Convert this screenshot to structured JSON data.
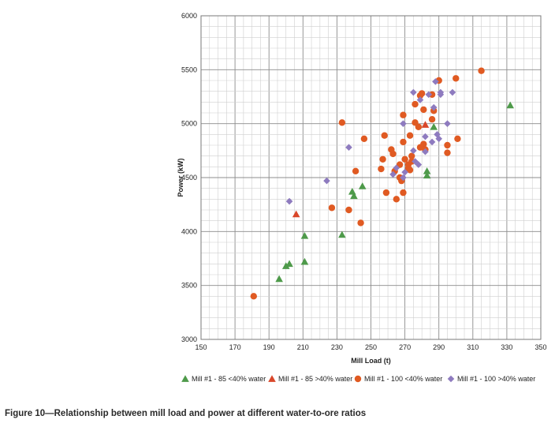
{
  "caption": "Figure 10—Relationship between mill load and power at different water-to-ore ratios",
  "chart_data": {
    "type": "scatter",
    "title": "",
    "xlabel": "Mill Load (t)",
    "ylabel": "Power (kW)",
    "xlim": [
      150,
      350
    ],
    "ylim": [
      3000,
      6000
    ],
    "x_ticks": [
      "150",
      "170",
      "190",
      "210",
      "230",
      "250",
      "270",
      "290",
      "310",
      "330",
      "350"
    ],
    "y_ticks": [
      "3000",
      "3500",
      "4000",
      "4500",
      "5000",
      "5500",
      "6000"
    ],
    "x_major_step": 20,
    "x_minor_step": 5,
    "y_major_step": 500,
    "y_minor_step": 100,
    "grid": true,
    "legend_position": "bottom",
    "series": [
      {
        "name": "Mill #1 - 85 <40% water",
        "marker": "triangle",
        "color": "#4e9a4a",
        "points": [
          [
            196,
            3560
          ],
          [
            200,
            3680
          ],
          [
            202,
            3700
          ],
          [
            211,
            3960
          ],
          [
            211,
            3720
          ],
          [
            233,
            3970
          ],
          [
            239,
            4370
          ],
          [
            240,
            4330
          ],
          [
            245,
            4420
          ],
          [
            283,
            4560
          ],
          [
            283,
            4520
          ],
          [
            287,
            4970
          ],
          [
            332,
            5170
          ]
        ]
      },
      {
        "name": "Mill #1 - 85 >40% water",
        "marker": "triangle",
        "color": "#d9472a",
        "points": [
          [
            206,
            4160
          ],
          [
            282,
            4990
          ]
        ]
      },
      {
        "name": "Mill #1 - 100 <40% water",
        "marker": "circle",
        "color": "#e05a22",
        "points": [
          [
            181,
            3400
          ],
          [
            227,
            4220
          ],
          [
            233,
            5010
          ],
          [
            237,
            4200
          ],
          [
            241,
            4560
          ],
          [
            244,
            4080
          ],
          [
            246,
            4860
          ],
          [
            256,
            4580
          ],
          [
            257,
            4670
          ],
          [
            258,
            4890
          ],
          [
            259,
            4360
          ],
          [
            262,
            4760
          ],
          [
            263,
            4720
          ],
          [
            264,
            4560
          ],
          [
            265,
            4300
          ],
          [
            267,
            4620
          ],
          [
            267,
            4500
          ],
          [
            268,
            4470
          ],
          [
            269,
            4830
          ],
          [
            269,
            4360
          ],
          [
            269,
            5080
          ],
          [
            270,
            4670
          ],
          [
            272,
            4590
          ],
          [
            272,
            4620
          ],
          [
            273,
            4570
          ],
          [
            273,
            4890
          ],
          [
            274,
            4650
          ],
          [
            274,
            4700
          ],
          [
            276,
            5010
          ],
          [
            276,
            5180
          ],
          [
            278,
            4970
          ],
          [
            279,
            5260
          ],
          [
            279,
            4780
          ],
          [
            280,
            5280
          ],
          [
            281,
            4810
          ],
          [
            281,
            5130
          ],
          [
            282,
            4760
          ],
          [
            286,
            5270
          ],
          [
            286,
            5040
          ],
          [
            287,
            5120
          ],
          [
            290,
            5400
          ],
          [
            295,
            4800
          ],
          [
            295,
            4730
          ],
          [
            300,
            5420
          ],
          [
            301,
            4860
          ],
          [
            315,
            5490
          ]
        ]
      },
      {
        "name": "Mill #1 - 100 >40% water",
        "marker": "diamond",
        "color": "#8e7bbf",
        "points": [
          [
            202,
            4280
          ],
          [
            224,
            4470
          ],
          [
            237,
            4780
          ],
          [
            263,
            4530
          ],
          [
            265,
            4590
          ],
          [
            269,
            4500
          ],
          [
            270,
            4550
          ],
          [
            269,
            5000
          ],
          [
            275,
            4750
          ],
          [
            276,
            4650
          ],
          [
            275,
            5290
          ],
          [
            278,
            4620
          ],
          [
            279,
            5220
          ],
          [
            282,
            4880
          ],
          [
            282,
            4740
          ],
          [
            284,
            5270
          ],
          [
            286,
            4830
          ],
          [
            287,
            5150
          ],
          [
            288,
            5390
          ],
          [
            289,
            4900
          ],
          [
            290,
            4860
          ],
          [
            291,
            5290
          ],
          [
            291,
            5270
          ],
          [
            295,
            5000
          ],
          [
            298,
            5290
          ]
        ]
      }
    ]
  }
}
